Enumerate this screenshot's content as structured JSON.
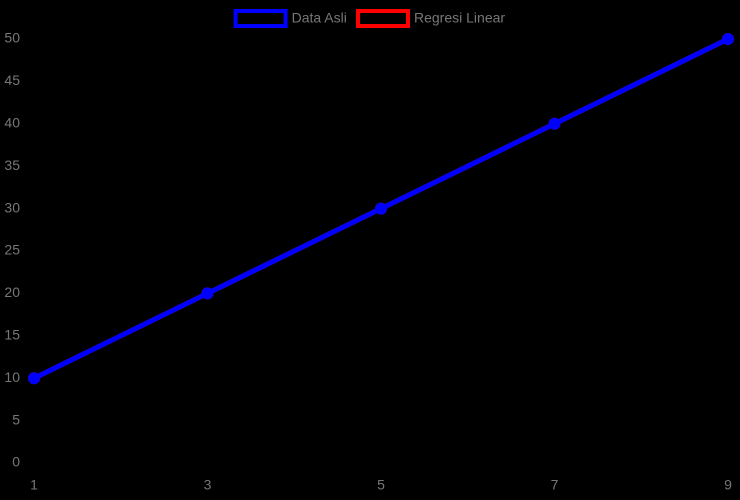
{
  "chart_data": {
    "type": "line",
    "x": [
      1,
      3,
      5,
      7,
      9
    ],
    "series": [
      {
        "name": "Data Asli",
        "color": "#0000ff",
        "values": [
          10,
          20,
          30,
          40,
          50
        ]
      },
      {
        "name": "Regresi Linear",
        "color": "#ff0000",
        "values": [
          10,
          20,
          30,
          40,
          50
        ]
      }
    ],
    "xlim": [
      1,
      9
    ],
    "xticks": [
      1,
      3,
      5,
      7,
      9
    ],
    "ylim": [
      0,
      50
    ],
    "yticks": [
      0,
      5,
      10,
      15,
      20,
      25,
      30,
      35,
      40,
      45,
      50
    ],
    "grid": false,
    "legend": "top"
  }
}
